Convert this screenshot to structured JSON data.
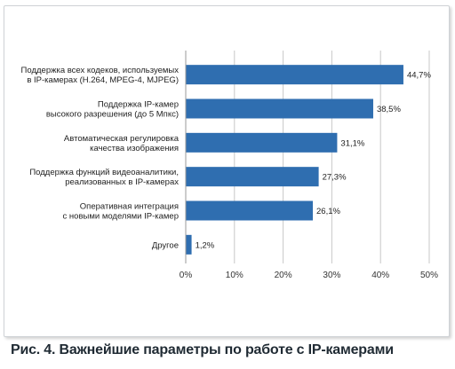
{
  "caption": "Рис. 4. Важнейшие параметры по работе с IP-камерами",
  "colors": {
    "bar": "#2f6eb0",
    "grid": "#c8c8c8",
    "frame": "#cfd2d6"
  },
  "chart_data": {
    "type": "bar",
    "orientation": "horizontal",
    "title": "",
    "xlabel": "",
    "ylabel": "",
    "xlim": [
      0,
      50
    ],
    "grid": true,
    "ticks": [
      0,
      10,
      20,
      30,
      40,
      50
    ],
    "tick_labels": [
      "0%",
      "10%",
      "20%",
      "30%",
      "40%",
      "50%"
    ],
    "categories": [
      [
        "Поддержка всех кодеков, используемых",
        "в IP-камерах (H.264, MPEG-4, MJPEG)"
      ],
      [
        "Поддержка IP-камер",
        "высокого разрешения (до 5 Мпкс)"
      ],
      [
        "Автоматическая регулировка",
        "качества изображения"
      ],
      [
        "Поддержка функций видеоаналитики,",
        "реализованных в IP-камерах"
      ],
      [
        "Оперативная интеграция",
        "с новыми моделями IP-камер"
      ],
      [
        "Другое"
      ]
    ],
    "values": [
      44.7,
      38.5,
      31.1,
      27.3,
      26.1,
      1.2
    ],
    "value_labels": [
      "44,7%",
      "38,5%",
      "31,1%",
      "27,3%",
      "26,1%",
      "1,2%"
    ]
  }
}
